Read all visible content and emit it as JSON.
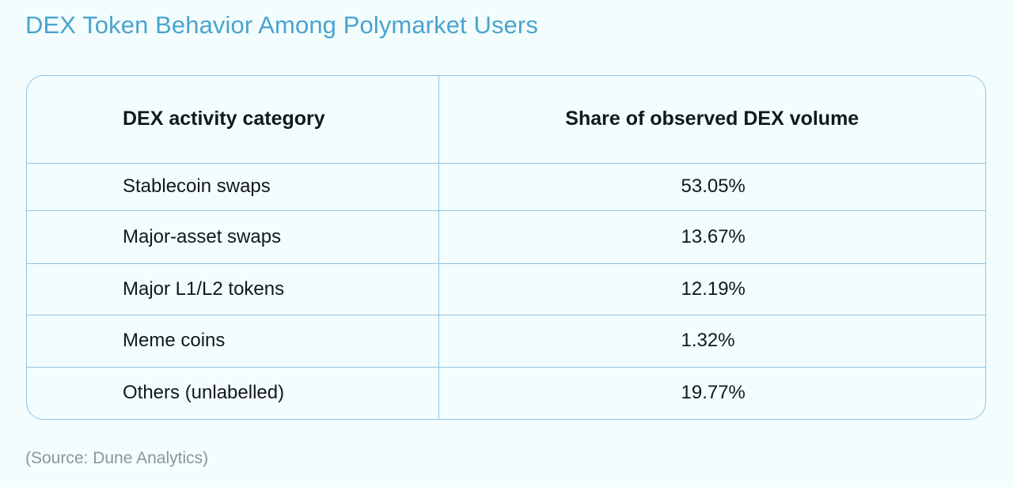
{
  "title": "DEX Token Behavior Among Polymarket Users",
  "source": "(Source: Dune Analytics)",
  "chart_data": {
    "type": "table",
    "title": "DEX Token Behavior Among Polymarket Users",
    "columns": [
      "DEX activity category",
      "Share of observed DEX volume"
    ],
    "rows": [
      {
        "category": "Stablecoin swaps",
        "share": "53.05%",
        "value": 53.05
      },
      {
        "category": "Major-asset swaps",
        "share": "13.67%",
        "value": 13.67
      },
      {
        "category": "Major L1/L2 tokens",
        "share": "12.19%",
        "value": 12.19
      },
      {
        "category": "Meme coins",
        "share": "1.32%",
        "value": 1.32
      },
      {
        "category": "Others (unlabelled)",
        "share": "19.77%",
        "value": 19.77
      }
    ]
  },
  "colors": {
    "title": "#4aa3cf",
    "border": "#8ec3e6",
    "background": "#f3fdfd",
    "text": "#101820",
    "source": "#8e9599"
  }
}
